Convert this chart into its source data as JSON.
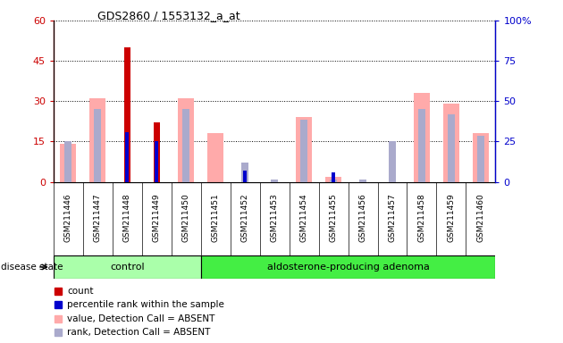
{
  "title": "GDS2860 / 1553132_a_at",
  "samples": [
    "GSM211446",
    "GSM211447",
    "GSM211448",
    "GSM211449",
    "GSM211450",
    "GSM211451",
    "GSM211452",
    "GSM211453",
    "GSM211454",
    "GSM211455",
    "GSM211456",
    "GSM211457",
    "GSM211458",
    "GSM211459",
    "GSM211460"
  ],
  "count": [
    0,
    0,
    50,
    22,
    0,
    0,
    0,
    0,
    0,
    0,
    0,
    0,
    0,
    0,
    0
  ],
  "percentile_rank": [
    0,
    0,
    31,
    25,
    0,
    0,
    7,
    0,
    0,
    6,
    0,
    0,
    0,
    0,
    0
  ],
  "value_absent": [
    14,
    31,
    0,
    0,
    31,
    18,
    0,
    0,
    24,
    2,
    0,
    0,
    33,
    29,
    18
  ],
  "rank_absent": [
    15,
    27,
    0,
    0,
    27,
    0,
    7,
    1,
    23,
    1,
    1,
    15,
    27,
    25,
    17
  ],
  "control_count": 5,
  "adenoma_count": 10,
  "ylim_left": [
    0,
    60
  ],
  "ylim_right": [
    0,
    100
  ],
  "yticks_left": [
    0,
    15,
    30,
    45,
    60
  ],
  "yticks_right": [
    0,
    25,
    50,
    75,
    100
  ],
  "ytick_labels_left": [
    "0",
    "15",
    "30",
    "45",
    "60"
  ],
  "ytick_labels_right": [
    "0",
    "25",
    "50",
    "75",
    "100%"
  ],
  "color_count": "#cc0000",
  "color_rank": "#0000cc",
  "color_value_absent": "#ffaaaa",
  "color_rank_absent": "#aaaacc",
  "color_control_bg": "#aaffaa",
  "color_adenoma_bg": "#44ee44",
  "color_plot_bg": "#ffffff",
  "color_xtick_bg": "#cccccc",
  "disease_label": "disease state",
  "control_label": "control",
  "adenoma_label": "aldosterone-producing adenoma",
  "legend_entries": [
    "count",
    "percentile rank within the sample",
    "value, Detection Call = ABSENT",
    "rank, Detection Call = ABSENT"
  ]
}
